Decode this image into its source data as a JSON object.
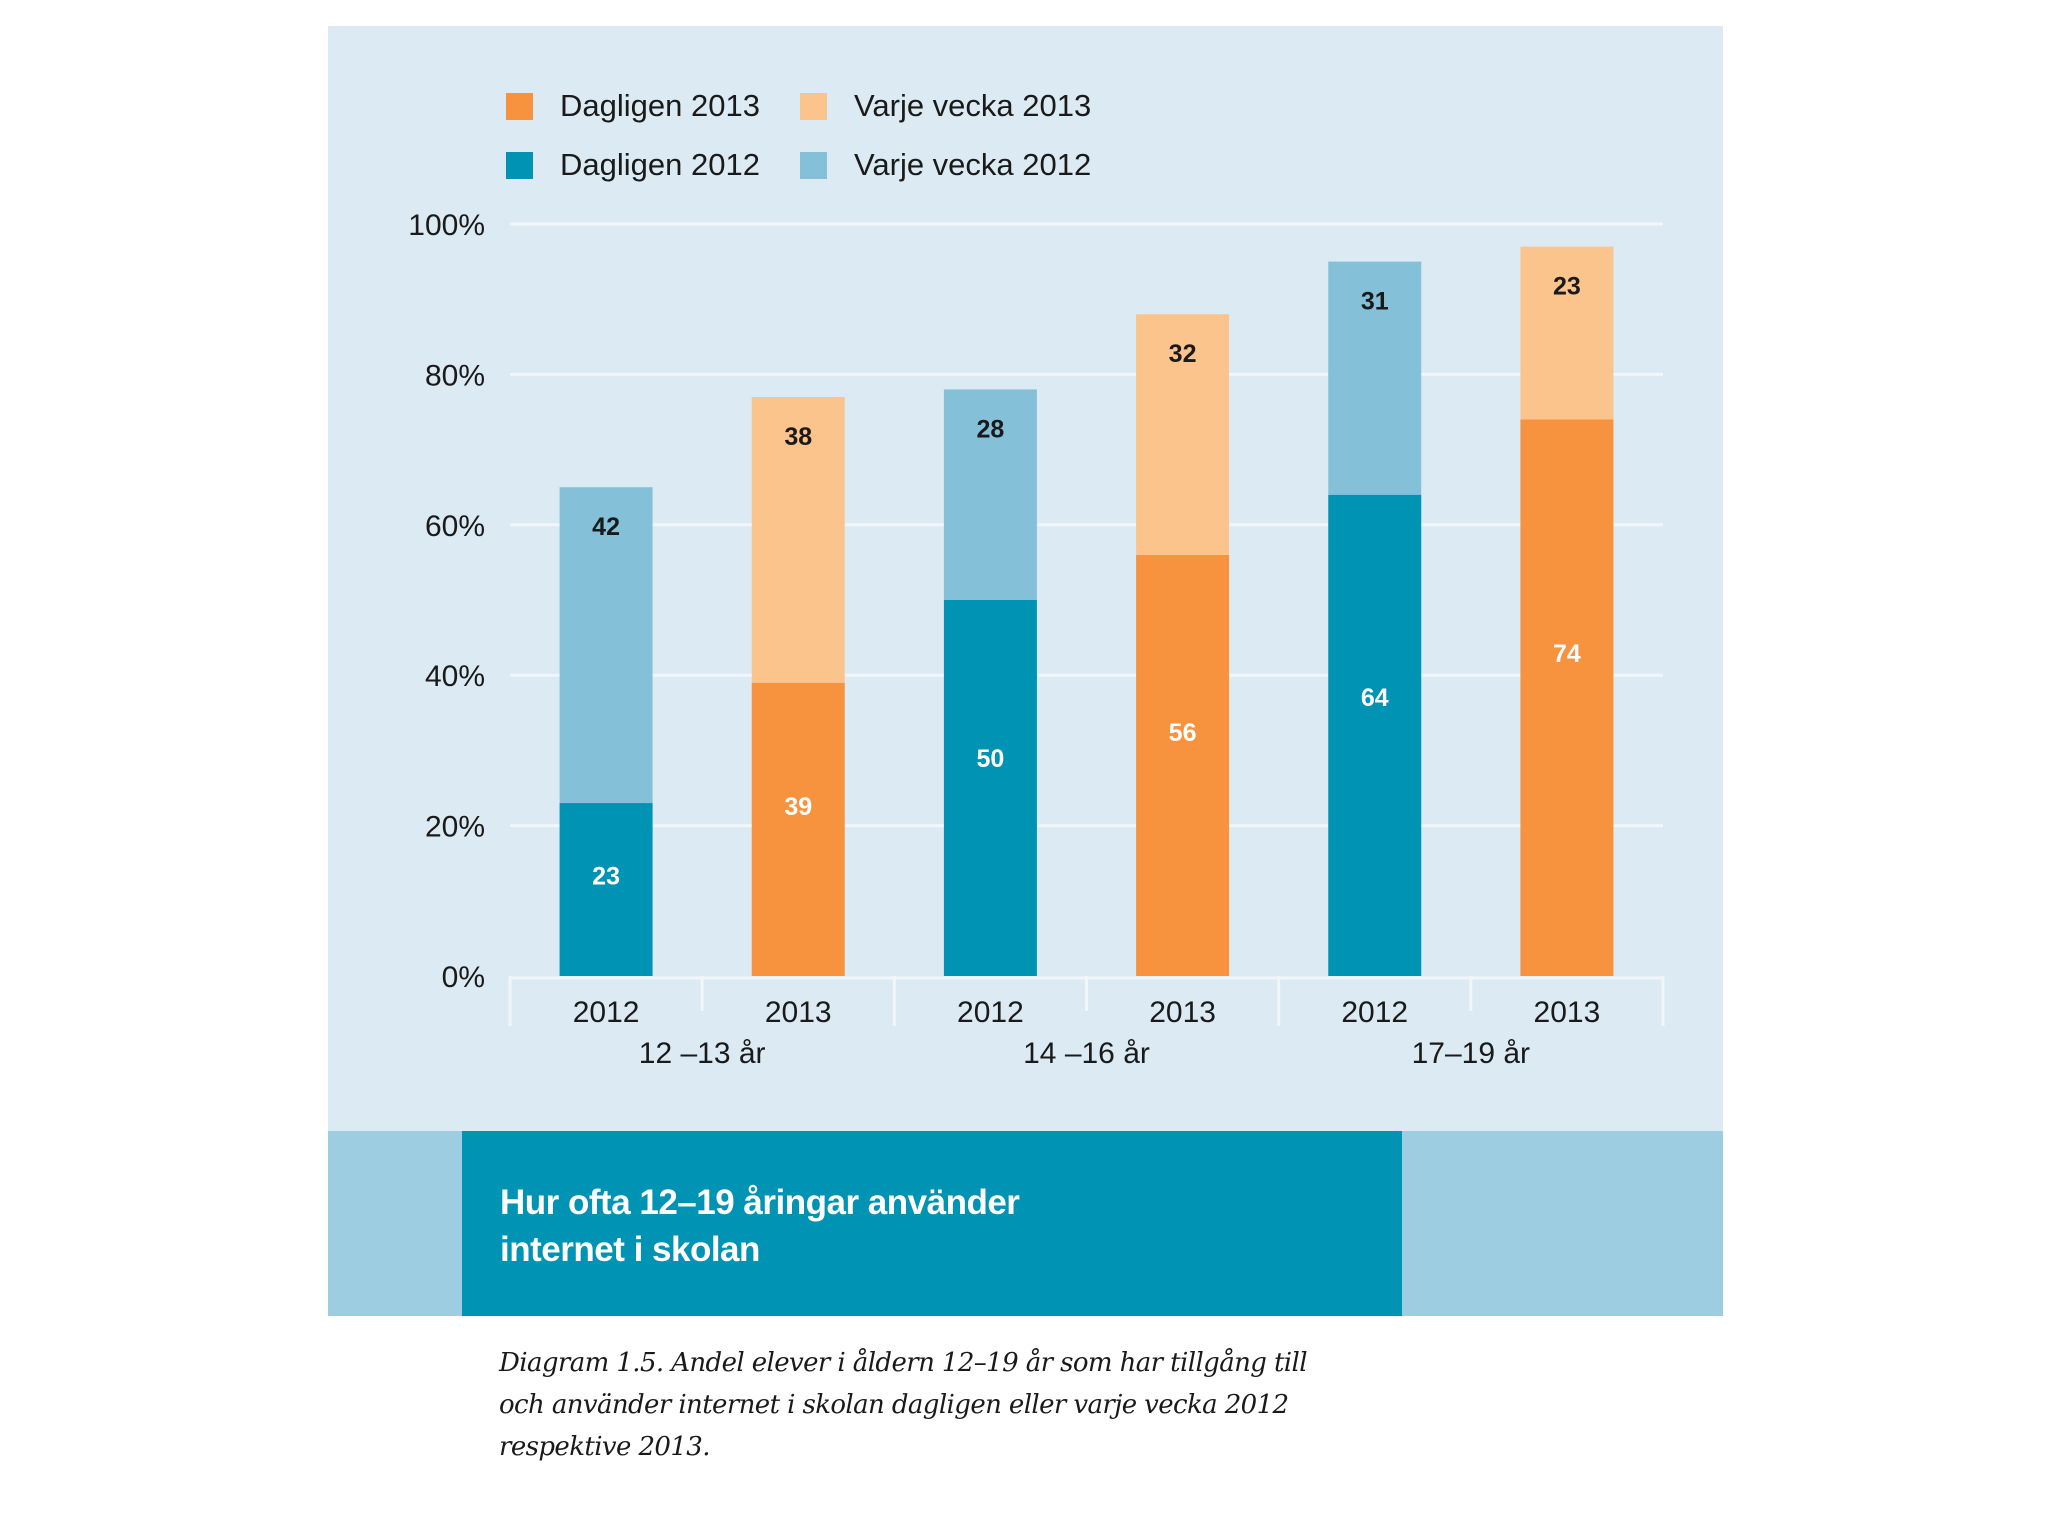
{
  "chart_data": {
    "type": "bar",
    "stacked": true,
    "title": "Hur ofta 12–19 åringar använder internet i skolan",
    "caption": "Diagram 1.5. Andel elever i åldern 12–19 år som har tillgång till och använder internet i skolan dagligen eller varje vecka 2012 respektive 2013.",
    "xlabel": "",
    "ylabel": "",
    "ylim": [
      0,
      100
    ],
    "y_ticks": [
      "0%",
      "20%",
      "40%",
      "60%",
      "80%",
      "100%"
    ],
    "y_tick_values": [
      0,
      20,
      40,
      60,
      80,
      100
    ],
    "grid": true,
    "legend_position": "top-left",
    "groups": [
      "12 –13 år",
      "14 –16 år",
      "17–19 år"
    ],
    "categories": [
      "2012",
      "2013",
      "2012",
      "2013",
      "2012",
      "2013"
    ],
    "category_group": [
      0,
      0,
      1,
      1,
      2,
      2
    ],
    "bars": [
      {
        "year": "2012",
        "dagligen": 23,
        "varje_vecka": 42
      },
      {
        "year": "2013",
        "dagligen": 39,
        "varje_vecka": 38
      },
      {
        "year": "2012",
        "dagligen": 50,
        "varje_vecka": 28
      },
      {
        "year": "2013",
        "dagligen": 56,
        "varje_vecka": 32
      },
      {
        "year": "2012",
        "dagligen": 64,
        "varje_vecka": 31
      },
      {
        "year": "2013",
        "dagligen": 74,
        "varje_vecka": 23
      }
    ],
    "series": [
      {
        "name": "Dagligen 2013",
        "color": "#f7923f"
      },
      {
        "name": "Varje vecka 2013",
        "color": "#fbc48d"
      },
      {
        "name": "Dagligen 2012",
        "color": "#0093b4"
      },
      {
        "name": "Varje vecka 2012",
        "color": "#84c1d8"
      }
    ]
  },
  "legend": [
    {
      "label": "Dagligen 2013",
      "color": "#f7923f"
    },
    {
      "label": "Varje vecka 2013",
      "color": "#fbc48d"
    },
    {
      "label": "Dagligen 2012",
      "color": "#0093b4"
    },
    {
      "label": "Varje vecka 2012",
      "color": "#84c1d8"
    }
  ],
  "banner": {
    "title_line1": "Hur ofta 12–19 åringar använder",
    "title_line2": "internet i skolan"
  },
  "caption": {
    "line1": "Diagram 1.5. Andel elever i åldern 12–19 år som har tillgång till",
    "line2": "och använder internet i skolan dagligen eller varje vecka 2012",
    "line3": "respektive 2013."
  },
  "colors": {
    "panel_bg": "#dceaf4",
    "banner_outer": "#9dcde0",
    "banner_inner": "#0093b4",
    "gridline": "#f0f6fa"
  }
}
